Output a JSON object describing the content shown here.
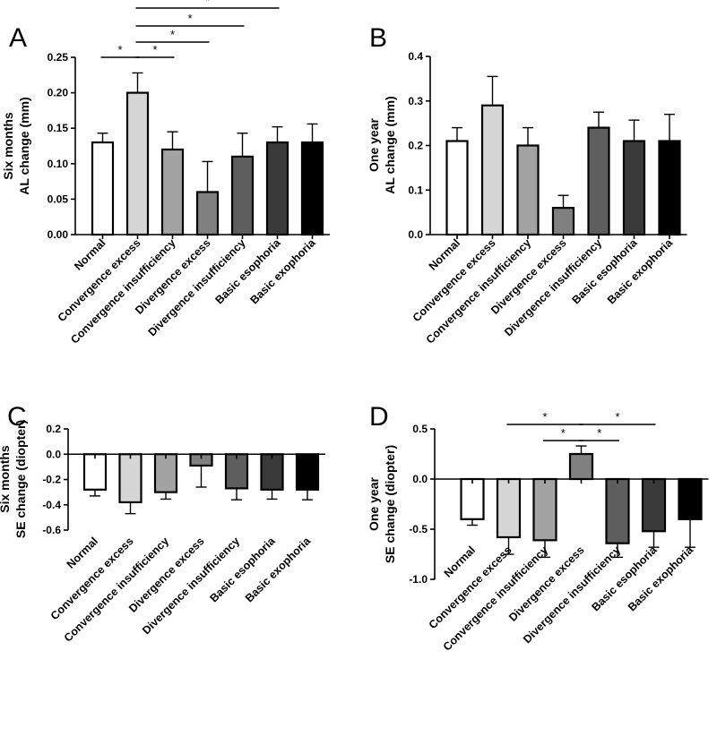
{
  "chart_data": [
    {
      "panel": "A",
      "type": "bar",
      "ylabel": [
        "Six months",
        "AL change (mm)"
      ],
      "ylim": [
        0,
        0.25
      ],
      "yticks": [
        0,
        0.05,
        0.1,
        0.15,
        0.2,
        0.25
      ],
      "ytick_labels": [
        "0.00",
        "0.05",
        "0.10",
        "0.15",
        "0.20",
        "0.25"
      ],
      "categories": [
        "Normal",
        "Convergence excess",
        "Convergence insufficiency",
        "Divergence excess",
        "Divergence insufficiency",
        "Basic esophoria",
        "Basic exophoria"
      ],
      "values": [
        0.13,
        0.2,
        0.12,
        0.06,
        0.11,
        0.13,
        0.13
      ],
      "errors": [
        0.013,
        0.028,
        0.025,
        0.043,
        0.033,
        0.022,
        0.026
      ],
      "colors": [
        "#ffffff",
        "#d6d6d6",
        "#a3a3a3",
        "#808080",
        "#5e5e5e",
        "#3a3a3a",
        "#000000"
      ],
      "significance": [
        {
          "from": 0,
          "to": 1,
          "label": "*"
        },
        {
          "from": 1,
          "to": 2,
          "label": "*"
        },
        {
          "from": 1,
          "to": 3,
          "label": "*"
        },
        {
          "from": 1,
          "to": 4,
          "label": "*"
        },
        {
          "from": 1,
          "to": 5,
          "label": "*"
        }
      ]
    },
    {
      "panel": "B",
      "type": "bar",
      "ylabel": [
        "One year",
        "AL change (mm)"
      ],
      "ylim": [
        0,
        0.4
      ],
      "yticks": [
        0,
        0.1,
        0.2,
        0.3,
        0.4
      ],
      "ytick_labels": [
        "0.0",
        "0.1",
        "0.2",
        "0.3",
        "0.4"
      ],
      "categories": [
        "Normal",
        "Convergence excess",
        "Convergence insufficiency",
        "Divergence excess",
        "Divergence insufficiency",
        "Basic esophoria",
        "Basic exophoria"
      ],
      "values": [
        0.21,
        0.29,
        0.2,
        0.06,
        0.24,
        0.21,
        0.21
      ],
      "errors": [
        0.03,
        0.065,
        0.04,
        0.028,
        0.035,
        0.047,
        0.06
      ],
      "colors": [
        "#ffffff",
        "#d6d6d6",
        "#a3a3a3",
        "#808080",
        "#5e5e5e",
        "#3a3a3a",
        "#000000"
      ],
      "significance": []
    },
    {
      "panel": "C",
      "type": "bar",
      "ylabel": [
        "Six months",
        "SE change (diopter)"
      ],
      "ylim": [
        -0.6,
        0.2
      ],
      "yticks": [
        -0.6,
        -0.4,
        -0.2,
        0,
        0.2
      ],
      "ytick_labels": [
        "-0.6",
        "-0.4",
        "-0.2",
        "0.0",
        "0.2"
      ],
      "categories": [
        "Normal",
        "Convergence excess",
        "Convergence insufficiency",
        "Divergence excess",
        "Divergence insufficiency",
        "Basic esophoria",
        "Basic exophoria"
      ],
      "values": [
        -0.28,
        -0.38,
        -0.3,
        -0.09,
        -0.27,
        -0.28,
        -0.28
      ],
      "errors": [
        0.05,
        0.09,
        0.055,
        0.17,
        0.09,
        0.075,
        0.08
      ],
      "colors": [
        "#ffffff",
        "#d6d6d6",
        "#a3a3a3",
        "#808080",
        "#5e5e5e",
        "#3a3a3a",
        "#000000"
      ],
      "significance": []
    },
    {
      "panel": "D",
      "type": "bar",
      "ylabel": [
        "One year",
        "SE change (diopter)"
      ],
      "ylim": [
        -1.0,
        0.5
      ],
      "yticks": [
        -1.0,
        -0.5,
        0,
        0.5
      ],
      "ytick_labels": [
        "-1.0",
        "-0.5",
        "0.0",
        "0.5"
      ],
      "categories": [
        "Normal",
        "Convergence excess",
        "Convergence insufficiency",
        "Divergence excess",
        "Divergence insufficiency",
        "Basic esophoria",
        "Basic exophoria"
      ],
      "values": [
        -0.4,
        -0.58,
        -0.61,
        0.25,
        -0.64,
        -0.52,
        -0.4
      ],
      "errors": [
        0.06,
        0.17,
        0.17,
        0.08,
        0.14,
        0.16,
        0.28
      ],
      "colors": [
        "#ffffff",
        "#d6d6d6",
        "#a3a3a3",
        "#808080",
        "#5e5e5e",
        "#3a3a3a",
        "#000000"
      ],
      "significance": [
        {
          "from": 1,
          "to": 3,
          "label": "*"
        },
        {
          "from": 3,
          "to": 5,
          "label": "*"
        },
        {
          "from": 2,
          "to": 3,
          "label": "*"
        },
        {
          "from": 3,
          "to": 4,
          "label": "*"
        }
      ]
    }
  ]
}
